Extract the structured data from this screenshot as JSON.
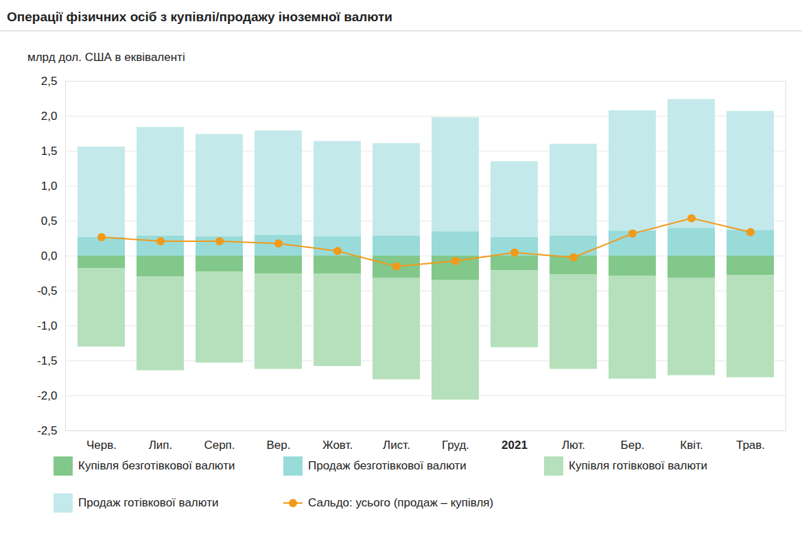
{
  "chart_data": {
    "type": "bar",
    "title": "Операції фізичних осіб з купівлі/продажу іноземної валюти",
    "y_label": "млрд дол. США в еквіваленті",
    "categories": [
      "Черв.",
      "Лип.",
      "Серп.",
      "Вер.",
      "Жовт.",
      "Лист.",
      "Груд.",
      "2021",
      "Лют.",
      "Бер.",
      "Квіт.",
      "Трав."
    ],
    "stacked": true,
    "grid": true,
    "legend": "bottom",
    "ylim": [
      -2.5,
      2.5
    ],
    "yticks": [
      {
        "value": -2.5,
        "label": "-2,5"
      },
      {
        "value": -2,
        "label": "-2,0"
      },
      {
        "value": -1.5,
        "label": "-1,5"
      },
      {
        "value": -1,
        "label": "-1,0"
      },
      {
        "value": -0.5,
        "label": "-0,5"
      },
      {
        "value": 0,
        "label": "0,0"
      },
      {
        "value": 0.5,
        "label": "0,5"
      },
      {
        "value": 1,
        "label": "1,0"
      },
      {
        "value": 1.5,
        "label": "1,5"
      },
      {
        "value": 2,
        "label": "2,0"
      },
      {
        "value": 2.5,
        "label": "2,5"
      }
    ],
    "series": [
      {
        "name": "Купівля безготівкової валюти",
        "type": "bar",
        "color": "#82c88a",
        "values": [
          -0.18,
          -0.3,
          -0.23,
          -0.26,
          -0.26,
          -0.32,
          -0.35,
          -0.21,
          -0.27,
          -0.29,
          -0.32,
          -0.28
        ]
      },
      {
        "name": "Продаж безготівкової валюти",
        "type": "bar",
        "color": "#98dbd9",
        "values": [
          0.27,
          0.29,
          0.28,
          0.3,
          0.28,
          0.29,
          0.35,
          0.27,
          0.29,
          0.36,
          0.4,
          0.37
        ]
      },
      {
        "name": "Купівля готівкової валюти",
        "type": "bar",
        "color": "#b5e0bb",
        "values": [
          -1.12,
          -1.34,
          -1.3,
          -1.36,
          -1.32,
          -1.45,
          -1.71,
          -1.1,
          -1.35,
          -1.47,
          -1.39,
          -1.46
        ]
      },
      {
        "name": "Продаж готівкової валюти",
        "type": "bar",
        "color": "#c4e9ea",
        "values": [
          1.29,
          1.55,
          1.46,
          1.49,
          1.36,
          1.32,
          1.63,
          1.08,
          1.31,
          1.72,
          1.84,
          1.7
        ]
      },
      {
        "name": "Сальдо: усього (продаж – купівля)",
        "type": "line",
        "marker": "circle",
        "color": "#f29a1a",
        "values": [
          0.27,
          0.21,
          0.21,
          0.18,
          0.07,
          -0.15,
          -0.07,
          0.05,
          -0.02,
          0.32,
          0.54,
          0.34
        ]
      }
    ]
  }
}
